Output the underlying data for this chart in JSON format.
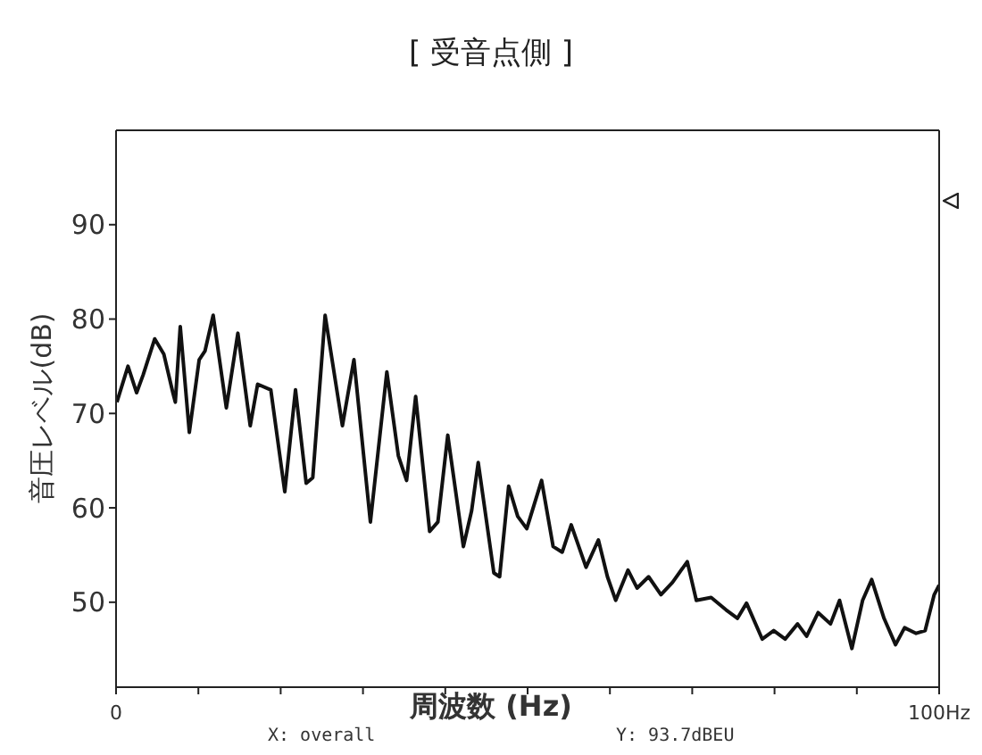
{
  "chart_data": {
    "type": "line",
    "title": "[ 受音点側 ]",
    "xlabel": "周波数 (Hz)",
    "ylabel": "音圧レベル(dB)",
    "annotations": [
      "X: overall",
      "Y: 93.7dBEU"
    ],
    "xlim": [
      0,
      100
    ],
    "xticks": [
      0,
      {
        "value": 10,
        "label": null
      },
      {
        "value": 20,
        "label": null
      },
      {
        "value": 30,
        "label": null
      },
      {
        "value": 40,
        "label": null
      },
      {
        "value": 50,
        "label": null
      },
      {
        "value": 60,
        "label": null
      },
      {
        "value": 70,
        "label": null
      },
      {
        "value": 80,
        "label": null
      },
      {
        "value": 90,
        "label": null
      },
      {
        "value": 100,
        "label": "100Hz"
      }
    ],
    "ylim": [
      41,
      100
    ],
    "yticks": [
      50,
      60,
      70,
      80,
      90
    ],
    "grid": false,
    "legend": false,
    "marker": "none",
    "line_style": "solid",
    "series": [
      {
        "color": "#111111",
        "x": [
          0.1,
          1.45,
          2.5,
          3.3,
          4.7,
          5.8,
          6.9,
          7.2,
          7.8,
          8.9,
          10.1,
          10.8,
          11.8,
          13.4,
          14.8,
          16.3,
          17.2,
          18.8,
          20.5,
          21.8,
          23.1,
          23.9,
          25.4,
          27.5,
          28.9,
          30.9,
          32.9,
          34.3,
          35.3,
          36.4,
          38.1,
          39.1,
          40.3,
          42.2,
          43.2,
          44.0,
          45.9,
          46.6,
          47.7,
          48.8,
          49.9,
          51.7,
          53.1,
          54.2,
          55.3,
          57.1,
          58.6,
          59.7,
          60.7,
          62.2,
          63.3,
          64.7,
          66.2,
          67.6,
          69.4,
          70.5,
          72.3,
          74.1,
          75.5,
          76.6,
          78.5,
          79.9,
          81.3,
          82.8,
          83.9,
          85.3,
          86.8,
          87.9,
          89.4,
          90.7,
          91.8,
          93.3,
          94.7,
          95.8,
          97.2,
          98.3,
          99.4,
          100
        ],
        "values": [
          71.2,
          75.0,
          72.2,
          74.1,
          77.9,
          76.3,
          72.2,
          71.2,
          79.2,
          68.0,
          75.7,
          76.6,
          80.4,
          70.6,
          78.5,
          68.7,
          73.1,
          72.5,
          61.7,
          72.5,
          62.6,
          63.2,
          80.4,
          68.7,
          75.7,
          58.5,
          74.4,
          65.5,
          62.9,
          71.8,
          57.5,
          58.5,
          67.7,
          55.9,
          59.7,
          64.8,
          53.1,
          52.7,
          62.3,
          59.1,
          57.8,
          62.9,
          55.9,
          55.3,
          58.2,
          53.7,
          56.6,
          52.7,
          50.2,
          53.4,
          51.5,
          52.7,
          50.8,
          52.1,
          54.3,
          50.2,
          50.5,
          49.2,
          48.3,
          49.9,
          46.1,
          47.0,
          46.1,
          47.7,
          46.4,
          48.9,
          47.7,
          50.2,
          45.1,
          50.2,
          52.4,
          48.3,
          45.5,
          47.3,
          46.7,
          47.0,
          50.8,
          51.8
        ]
      }
    ]
  }
}
